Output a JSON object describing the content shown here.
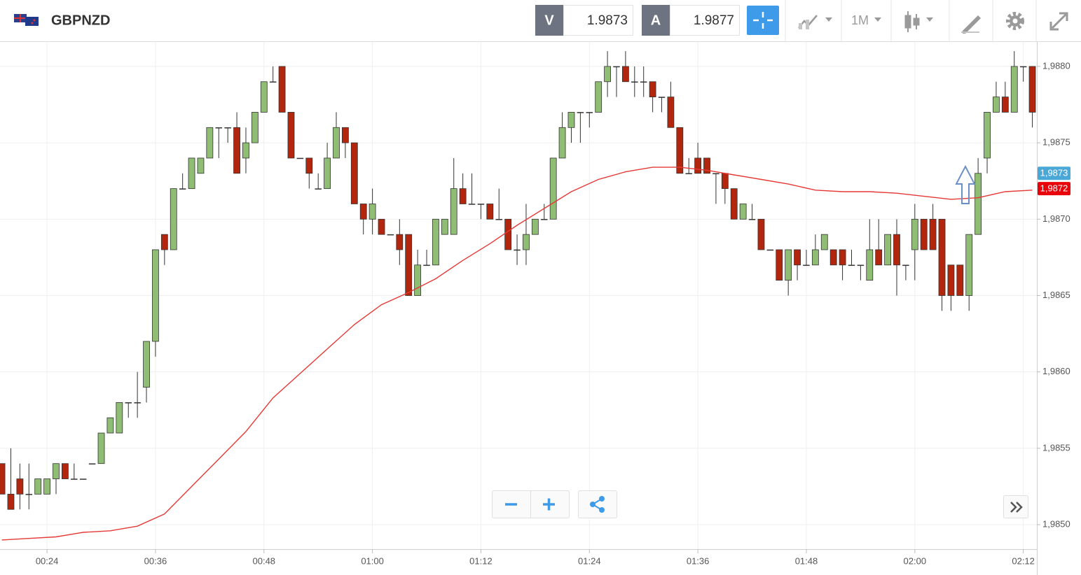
{
  "toolbar": {
    "symbol": "GBPNZD",
    "bid_label": "V",
    "bid": "1.9873",
    "ask_label": "A",
    "ask": "1.9877",
    "timeframe": "1M"
  },
  "chart_data": {
    "type": "candlestick",
    "x": [
      19,
      20,
      21,
      22,
      23,
      24,
      25,
      26,
      27,
      28,
      29,
      30,
      31,
      32,
      33,
      34,
      35,
      36,
      37,
      38,
      39,
      40,
      41,
      42,
      43,
      44,
      45,
      46,
      47,
      48,
      49,
      50,
      51,
      52,
      53,
      54,
      55,
      56,
      57,
      58,
      59,
      60,
      61,
      62,
      63,
      64,
      65,
      66,
      67,
      68,
      69,
      70,
      71,
      72,
      73,
      74,
      75,
      76,
      77,
      78,
      79,
      80,
      81,
      82,
      83,
      84,
      85,
      86,
      87,
      88,
      89,
      90,
      91,
      92,
      93,
      94,
      95,
      96,
      97,
      98,
      99,
      100,
      101,
      102,
      103,
      104,
      105,
      106,
      107,
      108,
      109,
      110,
      111,
      112,
      113,
      114,
      115,
      116,
      117,
      118,
      119,
      120,
      121,
      122,
      123,
      124,
      125,
      126,
      127,
      128,
      129,
      130,
      131,
      132,
      133
    ],
    "open": [
      1.9854,
      1.9852,
      1.9853,
      1.9852,
      1.9852,
      1.9852,
      1.9853,
      1.9854,
      1.9853,
      1.9853,
      1.9854,
      1.9854,
      1.9856,
      1.9856,
      1.9858,
      1.9858,
      1.9859,
      1.9862,
      1.9869,
      1.9868,
      1.9872,
      1.9872,
      1.9873,
      1.9874,
      1.9876,
      1.9876,
      1.9876,
      1.9874,
      1.9875,
      1.9877,
      1.9879,
      1.988,
      1.9877,
      1.9874,
      1.9874,
      1.9872,
      1.9872,
      1.9874,
      1.9876,
      1.9875,
      1.9871,
      1.987,
      1.987,
      1.9869,
      1.9869,
      1.9869,
      1.9865,
      1.9867,
      1.9867,
      1.9869,
      1.9869,
      1.9872,
      1.9871,
      1.9871,
      1.9871,
      1.987,
      1.987,
      1.9868,
      1.9868,
      1.9869,
      1.987,
      1.987,
      1.9874,
      1.9876,
      1.9877,
      1.9877,
      1.9877,
      1.9879,
      1.988,
      1.988,
      1.9879,
      1.9879,
      1.9879,
      1.9878,
      1.9878,
      1.9876,
      1.9873,
      1.9874,
      1.9874,
      1.9873,
      1.9873,
      1.9872,
      1.987,
      1.987,
      1.987,
      1.9868,
      1.9868,
      1.9866,
      1.9868,
      1.9867,
      1.9867,
      1.9868,
      1.9868,
      1.9868,
      1.9867,
      1.9867,
      1.9866,
      1.9868,
      1.9867,
      1.9869,
      1.9867,
      1.9868,
      1.987,
      1.987,
      1.987,
      1.9867,
      1.9867,
      1.9865,
      1.9869,
      1.9874,
      1.9877,
      1.9878,
      1.9877,
      1.988,
      1.988
    ],
    "high": [
      1.9854,
      1.9855,
      1.9854,
      1.9854,
      1.9853,
      1.9853,
      1.9854,
      1.9854,
      1.9854,
      1.9853,
      1.9854,
      1.9856,
      1.9857,
      1.9858,
      1.9858,
      1.986,
      1.9862,
      1.9868,
      1.9869,
      1.9872,
      1.9873,
      1.9874,
      1.9874,
      1.9876,
      1.9876,
      1.9876,
      1.9877,
      1.9876,
      1.9877,
      1.9879,
      1.988,
      1.988,
      1.9877,
      1.9874,
      1.9874,
      1.9873,
      1.9875,
      1.9877,
      1.9876,
      1.9875,
      1.9871,
      1.9872,
      1.987,
      1.9869,
      1.987,
      1.9869,
      1.9868,
      1.9868,
      1.987,
      1.987,
      1.9874,
      1.9873,
      1.9873,
      1.9871,
      1.9871,
      1.9872,
      1.987,
      1.9869,
      1.9871,
      1.987,
      1.9871,
      1.9874,
      1.9877,
      1.9877,
      1.9877,
      1.9877,
      1.9879,
      1.9881,
      1.988,
      1.9881,
      1.988,
      1.988,
      1.9879,
      1.9878,
      1.9879,
      1.9876,
      1.9874,
      1.9875,
      1.9874,
      1.9873,
      1.9873,
      1.9872,
      1.9871,
      1.9871,
      1.987,
      1.9868,
      1.9868,
      1.9868,
      1.9868,
      1.9868,
      1.9869,
      1.9869,
      1.9868,
      1.9868,
      1.9868,
      1.9867,
      1.987,
      1.987,
      1.9869,
      1.987,
      1.9867,
      1.9871,
      1.987,
      1.9871,
      1.987,
      1.9867,
      1.9867,
      1.9869,
      1.9874,
      1.9877,
      1.9879,
      1.9879,
      1.9881,
      1.988,
      1.988
    ],
    "low": [
      1.9852,
      1.9851,
      1.9851,
      1.9851,
      1.9852,
      1.9852,
      1.9852,
      1.9853,
      1.9853,
      1.9853,
      1.9854,
      1.9854,
      1.9856,
      1.9856,
      1.9857,
      1.9857,
      1.9858,
      1.9861,
      1.9867,
      1.9868,
      1.9872,
      1.9872,
      1.9873,
      1.9874,
      1.9874,
      1.9875,
      1.9873,
      1.9873,
      1.9875,
      1.9877,
      1.9879,
      1.9877,
      1.9874,
      1.9874,
      1.9872,
      1.9872,
      1.9872,
      1.9874,
      1.9874,
      1.9871,
      1.9869,
      1.9869,
      1.9869,
      1.9869,
      1.9867,
      1.9865,
      1.9865,
      1.9867,
      1.9867,
      1.9869,
      1.9869,
      1.9871,
      1.9871,
      1.987,
      1.987,
      1.987,
      1.9868,
      1.9867,
      1.9867,
      1.9869,
      1.987,
      1.987,
      1.9874,
      1.9875,
      1.9875,
      1.9876,
      1.9877,
      1.9878,
      1.9878,
      1.9879,
      1.9878,
      1.9878,
      1.9877,
      1.9877,
      1.9876,
      1.9873,
      1.9873,
      1.9873,
      1.9873,
      1.9871,
      1.9871,
      1.987,
      1.987,
      1.987,
      1.9868,
      1.9868,
      1.9866,
      1.9865,
      1.9866,
      1.9867,
      1.9867,
      1.9868,
      1.9867,
      1.9866,
      1.9867,
      1.9866,
      1.9866,
      1.9867,
      1.9867,
      1.9865,
      1.9866,
      1.9866,
      1.9868,
      1.9868,
      1.9864,
      1.9864,
      1.9865,
      1.9864,
      1.9869,
      1.9873,
      1.9877,
      1.9877,
      1.9877,
      1.9879,
      1.9876
    ],
    "close": [
      1.9852,
      1.9851,
      1.9852,
      1.9852,
      1.9853,
      1.9853,
      1.9854,
      1.9853,
      1.9853,
      1.9853,
      1.9854,
      1.9856,
      1.9857,
      1.9858,
      1.9858,
      1.9858,
      1.9862,
      1.9868,
      1.9868,
      1.9872,
      1.9872,
      1.9874,
      1.9874,
      1.9876,
      1.9876,
      1.9876,
      1.9873,
      1.9875,
      1.9877,
      1.9879,
      1.9879,
      1.9877,
      1.9874,
      1.9874,
      1.9873,
      1.9872,
      1.9874,
      1.9876,
      1.9875,
      1.9871,
      1.987,
      1.9871,
      1.9869,
      1.9869,
      1.9868,
      1.9865,
      1.9867,
      1.9867,
      1.987,
      1.987,
      1.9872,
      1.9871,
      1.9871,
      1.9871,
      1.987,
      1.987,
      1.9868,
      1.9868,
      1.9869,
      1.987,
      1.987,
      1.9874,
      1.9876,
      1.9877,
      1.9877,
      1.9877,
      1.9879,
      1.988,
      1.988,
      1.9879,
      1.9879,
      1.9879,
      1.9878,
      1.9878,
      1.9876,
      1.9873,
      1.9873,
      1.9873,
      1.9873,
      1.9873,
      1.9872,
      1.987,
      1.9871,
      1.987,
      1.9868,
      1.9868,
      1.9866,
      1.9868,
      1.9867,
      1.9867,
      1.9868,
      1.9869,
      1.9867,
      1.9867,
      1.9867,
      1.9867,
      1.9868,
      1.9867,
      1.9869,
      1.9867,
      1.9867,
      1.987,
      1.9868,
      1.9868,
      1.9865,
      1.9865,
      1.9865,
      1.9869,
      1.9873,
      1.9877,
      1.9878,
      1.9877,
      1.988,
      1.988,
      1.9877
    ],
    "up_color": "#8fbd73",
    "down_color": "#b3260e",
    "overlay": {
      "type": "line",
      "color": "#e53935",
      "x": [
        19,
        22,
        25,
        28,
        31,
        34,
        37,
        40,
        43,
        46,
        49,
        52,
        55,
        58,
        61,
        64,
        67,
        70,
        73,
        76,
        79,
        82,
        85,
        88,
        91,
        94,
        97,
        100,
        103,
        106,
        109,
        112,
        115,
        118,
        121,
        124,
        127,
        130,
        133
      ],
      "values": [
        1.9849,
        1.98491,
        1.98492,
        1.98495,
        1.98496,
        1.98499,
        1.98507,
        1.98525,
        1.98543,
        1.98561,
        1.98583,
        1.98599,
        1.98615,
        1.98631,
        1.98644,
        1.98652,
        1.98661,
        1.98673,
        1.98684,
        1.98696,
        1.98707,
        1.98718,
        1.98726,
        1.98731,
        1.98734,
        1.98734,
        1.98732,
        1.98729,
        1.98726,
        1.98723,
        1.98719,
        1.98718,
        1.98718,
        1.98717,
        1.98715,
        1.98713,
        1.98714,
        1.98718,
        1.98719
      ]
    },
    "xlim": [
      18.8,
      133.5
    ],
    "ylim": [
      1.98484,
      1.98816
    ],
    "xticks": [
      {
        "value": 24,
        "label": "00:24"
      },
      {
        "value": 36,
        "label": "00:36"
      },
      {
        "value": 48,
        "label": "00:48"
      },
      {
        "value": 60,
        "label": "01:00"
      },
      {
        "value": 72,
        "label": "01:12"
      },
      {
        "value": 84,
        "label": "01:24"
      },
      {
        "value": 96,
        "label": "01:36"
      },
      {
        "value": 108,
        "label": "01:48"
      },
      {
        "value": 120,
        "label": "02:00"
      },
      {
        "value": 132,
        "label": "02:12"
      }
    ],
    "yticks": [
      {
        "value": 1.985,
        "label": "1,9850"
      },
      {
        "value": 1.9855,
        "label": "1,9855"
      },
      {
        "value": 1.986,
        "label": "1,9860"
      },
      {
        "value": 1.9865,
        "label": "1,9865"
      },
      {
        "value": 1.987,
        "label": "1,9870"
      },
      {
        "value": 1.9875,
        "label": "1,9875"
      },
      {
        "value": 1.988,
        "label": "1,9880"
      }
    ],
    "grid": true,
    "price_labels": [
      {
        "value": 1.9873,
        "label": "1,9873",
        "color": "#4aa8d8"
      },
      {
        "value": 1.9872,
        "label": "1,9872",
        "color": "#e8000b"
      }
    ]
  }
}
